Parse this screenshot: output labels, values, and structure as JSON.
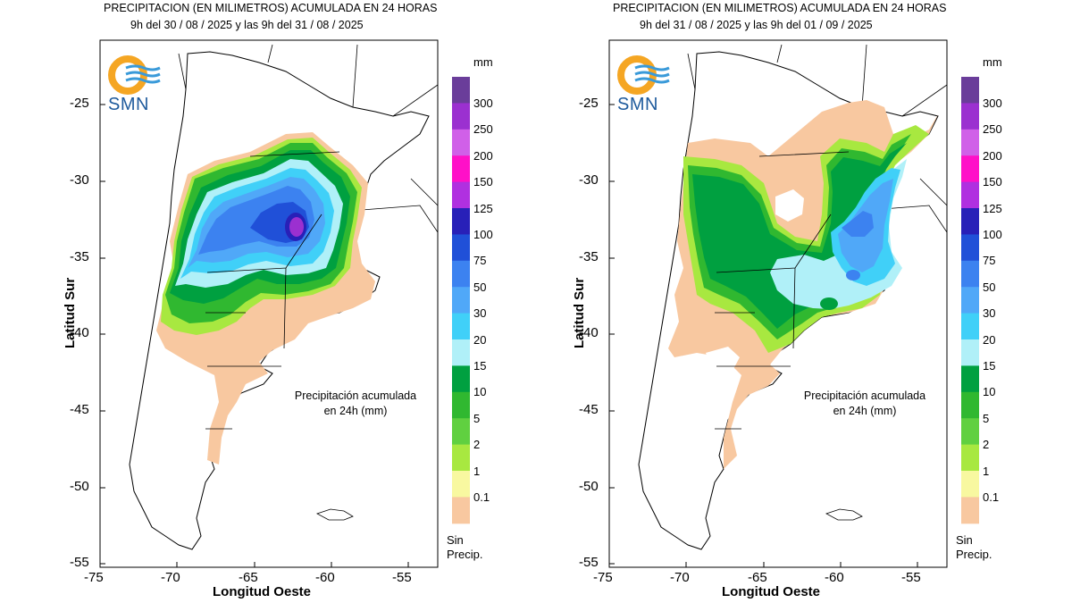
{
  "panels": [
    {
      "title_line1": "PRECIPITACION (EN MILIMETROS) ACUMULADA EN 24 HORAS",
      "title_line2": "9h del 30 / 08 / 2025  y las 9h del 31 / 08 / 2025",
      "note_line1": "Precipitación acumulada",
      "note_line2": "en 24h (mm)"
    },
    {
      "title_line1": "PRECIPITACION (EN MILIMETROS) ACUMULADA EN 24 HORAS",
      "title_line2": "9h del 31 / 08 / 2025  y las 9h del 01 / 09 / 2025",
      "note_line1": "Precipitación acumulada",
      "note_line2": "en 24h (mm)"
    }
  ],
  "logo_text": "SMN",
  "axes": {
    "ylabel": "Latitud Sur",
    "xlabel": "Longitud Oeste",
    "yticks": [
      "-25",
      "-30",
      "-35",
      "-40",
      "-45",
      "-50",
      "-55"
    ],
    "xticks": [
      "-75",
      "-70",
      "-65",
      "-60",
      "-55"
    ]
  },
  "legend": {
    "unit": "mm",
    "no_precip_line1": "Sin",
    "no_precip_line2": "Precip.",
    "levels": [
      {
        "label": "300",
        "color": "#6a3d9a"
      },
      {
        "label": "250",
        "color": "#9b30d0"
      },
      {
        "label": "200",
        "color": "#d060e8"
      },
      {
        "label": "150",
        "color": "#ff10c8"
      },
      {
        "label": "125",
        "color": "#b030e0"
      },
      {
        "label": "100",
        "color": "#2820b8"
      },
      {
        "label": "75",
        "color": "#2050d8"
      },
      {
        "label": "50",
        "color": "#3c82f0"
      },
      {
        "label": "30",
        "color": "#50a8f8"
      },
      {
        "label": "20",
        "color": "#40d0f8"
      },
      {
        "label": "15",
        "color": "#b0f0f8"
      },
      {
        "label": "10",
        "color": "#00a040"
      },
      {
        "label": "5",
        "color": "#30b830"
      },
      {
        "label": "2",
        "color": "#60d040"
      },
      {
        "label": "1",
        "color": "#a8e840"
      },
      {
        "label": "0.1",
        "color": "#f8f8a0"
      },
      {
        "label": "",
        "color": "#f8c8a0"
      }
    ]
  }
}
